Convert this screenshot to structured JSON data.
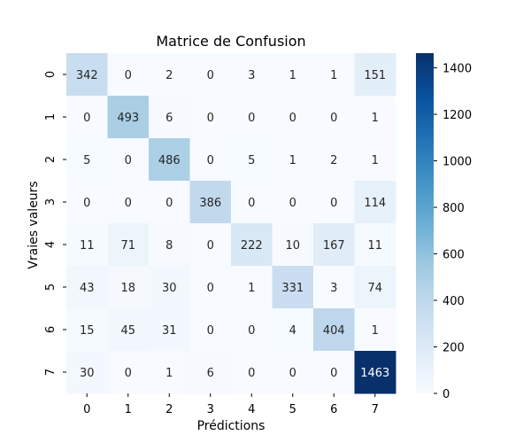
{
  "chart_data": {
    "type": "heatmap",
    "title": "Matrice de Confusion",
    "xlabel": "Prédictions",
    "ylabel": "Vraies valeurs",
    "x_categories": [
      "0",
      "1",
      "2",
      "3",
      "4",
      "5",
      "6",
      "7"
    ],
    "y_categories": [
      "0",
      "1",
      "2",
      "3",
      "4",
      "5",
      "6",
      "7"
    ],
    "values": [
      [
        342,
        0,
        2,
        0,
        3,
        1,
        1,
        151
      ],
      [
        0,
        493,
        6,
        0,
        0,
        0,
        0,
        1
      ],
      [
        5,
        0,
        486,
        0,
        5,
        1,
        2,
        1
      ],
      [
        0,
        0,
        0,
        386,
        0,
        0,
        0,
        114
      ],
      [
        11,
        71,
        8,
        0,
        222,
        10,
        167,
        11
      ],
      [
        43,
        18,
        30,
        0,
        1,
        331,
        3,
        74
      ],
      [
        15,
        45,
        31,
        0,
        0,
        4,
        404,
        1
      ],
      [
        30,
        0,
        1,
        6,
        0,
        0,
        0,
        1463
      ]
    ],
    "colormap": "Blues",
    "colorbar": {
      "range": [
        0,
        1463
      ],
      "ticks": [
        "0",
        "200",
        "400",
        "600",
        "800",
        "1000",
        "1200",
        "1400"
      ]
    }
  }
}
